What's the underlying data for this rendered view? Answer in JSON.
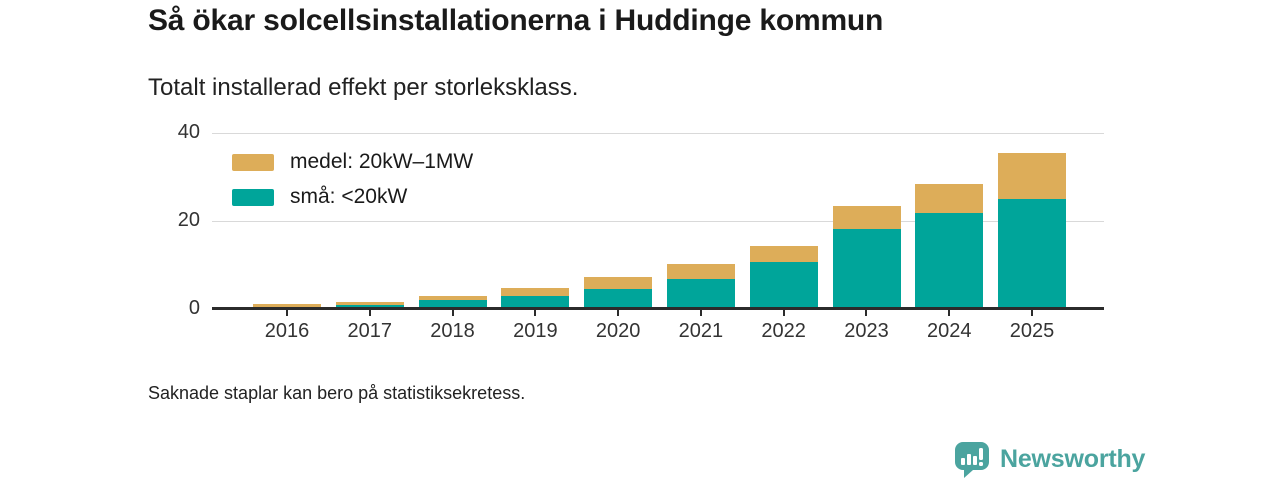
{
  "header": {
    "title": "Så ökar solcellsinstallationerna i Huddinge kommun",
    "subtitle": "Totalt installerad effekt per storleksklass."
  },
  "legend": {
    "items": [
      {
        "label": "medel: 20kW–1MW",
        "color": "#ddad59"
      },
      {
        "label": "små: <20kW",
        "color": "#00a59a"
      }
    ]
  },
  "footer": {
    "note": "Saknade staplar kan bero på statistiksekretess."
  },
  "branding": {
    "name": "Newsworthy",
    "color": "#4ba49f"
  },
  "colors": {
    "medel": "#ddad59",
    "sma": "#00a59a",
    "axis": "#2b2b2b",
    "grid": "#d9d9d9",
    "tick_text": "#333333"
  },
  "chart_data": {
    "type": "bar",
    "stacked": true,
    "title": "Så ökar solcellsinstallationerna i Huddinge kommun",
    "subtitle": "Totalt installerad effekt per storleksklass.",
    "categories": [
      "2016",
      "2017",
      "2018",
      "2019",
      "2020",
      "2021",
      "2022",
      "2023",
      "2024",
      "2025"
    ],
    "series": [
      {
        "name": "små: <20kW",
        "color": "#00a59a",
        "stack_order": "bottom",
        "values": [
          0.1,
          0.5,
          1.6,
          2.5,
          4.2,
          6.3,
          10.2,
          17.8,
          21.4,
          24.6
        ]
      },
      {
        "name": "medel: 20kW–1MW",
        "color": "#ddad59",
        "stack_order": "top",
        "values": [
          0.6,
          0.7,
          1.0,
          1.9,
          2.8,
          3.3,
          3.6,
          5.2,
          6.6,
          10.4
        ]
      }
    ],
    "totals": [
      0.7,
      1.2,
      2.6,
      4.4,
      7.0,
      9.6,
      13.8,
      23.0,
      28.0,
      35.0
    ],
    "xlabel": "",
    "ylabel": "",
    "ylim": [
      0,
      40
    ],
    "yticks": [
      0,
      20,
      40
    ],
    "grid": "horizontal",
    "legend_position": "top-left-inside",
    "note": "Saknade staplar kan bero på statistiksekretess."
  }
}
